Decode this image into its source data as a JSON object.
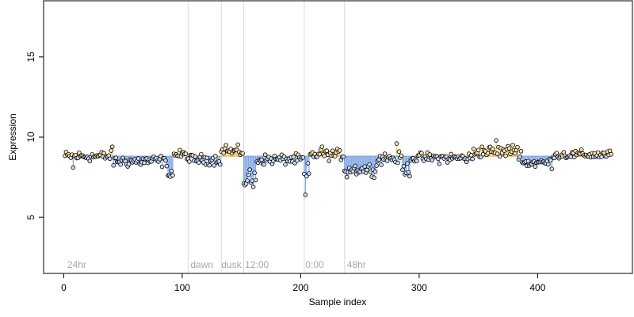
{
  "chart_data": {
    "type": "scatter",
    "title": "",
    "xlabel": "Sample index",
    "ylabel": "Expression",
    "xlim": [
      -17,
      480
    ],
    "ylim": [
      1.5,
      18.5
    ],
    "x_ticks": [
      0,
      100,
      200,
      300,
      400
    ],
    "y_ticks": [
      5,
      10,
      15
    ],
    "grid": false,
    "baseline": 8.8,
    "colors": {
      "above": "#f5c97a",
      "below": "#86a9e6",
      "point_fill_above": "#fce2b0",
      "point_fill_below": "#c9dbf7",
      "point_stroke": "#000000",
      "divider": "#d9d9d9",
      "phase_label": "#a8a8a8"
    },
    "phase_dividers": [
      105,
      133,
      152,
      203,
      237
    ],
    "phase_labels": [
      {
        "x": 3,
        "text": "24hr"
      },
      {
        "x": 107,
        "text": "dawn"
      },
      {
        "x": 133,
        "text": "dusk"
      },
      {
        "x": 153,
        "text": "12:00"
      },
      {
        "x": 204,
        "text": "0:00"
      },
      {
        "x": 239,
        "text": "48hr"
      }
    ],
    "series": [
      {
        "segments": [
          {
            "x_start": 1,
            "x_end": 40,
            "mean": 8.8,
            "amp": 0.3
          },
          {
            "x_start": 41,
            "x_end": 86,
            "mean": 8.5,
            "amp": 0.35
          },
          {
            "x_start": 87,
            "x_end": 92,
            "mean": 7.8,
            "amp": 0.4
          },
          {
            "x_start": 93,
            "x_end": 104,
            "mean": 8.9,
            "amp": 0.25
          },
          {
            "x_start": 105,
            "x_end": 132,
            "mean": 8.6,
            "amp": 0.3
          },
          {
            "x_start": 133,
            "x_end": 151,
            "mean": 9.1,
            "amp": 0.3
          },
          {
            "x_start": 152,
            "x_end": 162,
            "mean": 7.4,
            "amp": 0.6
          },
          {
            "x_start": 163,
            "x_end": 202,
            "mean": 8.6,
            "amp": 0.3
          },
          {
            "x_start": 203,
            "x_end": 207,
            "mean": 7.6,
            "amp": 0.7
          },
          {
            "x_start": 208,
            "x_end": 236,
            "mean": 8.9,
            "amp": 0.3
          },
          {
            "x_start": 237,
            "x_end": 264,
            "mean": 8.0,
            "amp": 0.35
          },
          {
            "x_start": 265,
            "x_end": 285,
            "mean": 8.7,
            "amp": 0.35
          },
          {
            "x_start": 286,
            "x_end": 292,
            "mean": 8.0,
            "amp": 0.4
          },
          {
            "x_start": 293,
            "x_end": 345,
            "mean": 8.7,
            "amp": 0.3
          },
          {
            "x_start": 346,
            "x_end": 386,
            "mean": 9.1,
            "amp": 0.35
          },
          {
            "x_start": 387,
            "x_end": 412,
            "mean": 8.4,
            "amp": 0.3
          },
          {
            "x_start": 413,
            "x_end": 462,
            "mean": 8.9,
            "amp": 0.25
          }
        ],
        "outliers": [
          {
            "x": 8,
            "y": 8.1
          },
          {
            "x": 41,
            "y": 9.4
          },
          {
            "x": 88,
            "y": 7.6
          },
          {
            "x": 137,
            "y": 9.5
          },
          {
            "x": 153,
            "y": 7.0
          },
          {
            "x": 160,
            "y": 6.9
          },
          {
            "x": 204,
            "y": 6.4
          },
          {
            "x": 218,
            "y": 9.4
          },
          {
            "x": 239,
            "y": 7.5
          },
          {
            "x": 281,
            "y": 9.6
          },
          {
            "x": 365,
            "y": 9.8
          },
          {
            "x": 379,
            "y": 9.5
          }
        ]
      }
    ]
  }
}
